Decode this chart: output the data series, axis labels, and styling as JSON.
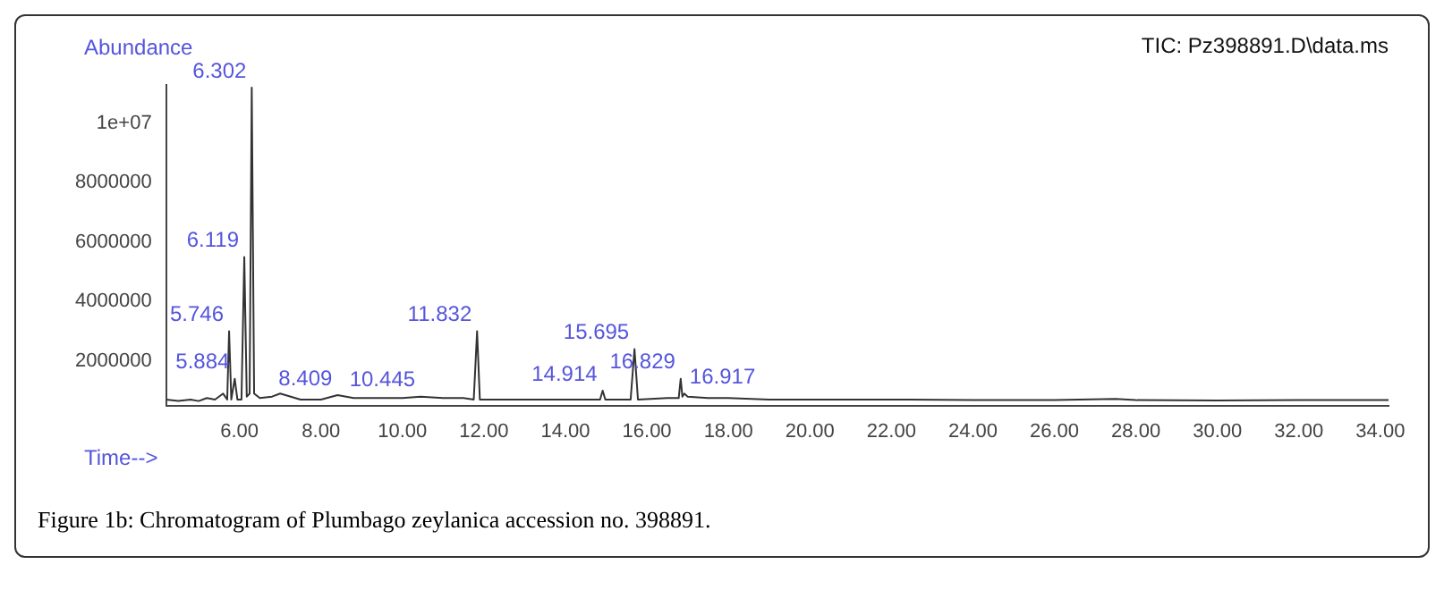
{
  "chart_data": {
    "type": "line",
    "title": "TIC: Pz398891.D\\data.ms",
    "xlabel": "Time-->",
    "ylabel": "Abundance",
    "x": [
      4.2,
      4.5,
      4.8,
      5.0,
      5.2,
      5.4,
      5.6,
      5.7,
      5.746,
      5.8,
      5.884,
      5.95,
      6.05,
      6.119,
      6.18,
      6.25,
      6.302,
      6.36,
      6.5,
      6.8,
      7.0,
      7.5,
      8.0,
      8.409,
      8.8,
      9.5,
      10.0,
      10.445,
      11.0,
      11.5,
      11.75,
      11.832,
      11.9,
      12.5,
      13.5,
      14.5,
      14.85,
      14.914,
      14.98,
      15.6,
      15.695,
      15.78,
      16.5,
      16.78,
      16.829,
      16.87,
      16.917,
      17.0,
      17.5,
      18,
      19,
      20,
      22,
      24,
      26,
      27.5,
      28,
      30,
      32,
      34.2
    ],
    "series": [
      {
        "color": "#333333",
        "values": [
          700000,
          650000,
          700000,
          650000,
          750000,
          700000,
          900000,
          700000,
          3000000,
          700000,
          1400000,
          700000,
          700000,
          5500000,
          800000,
          900000,
          11200000,
          900000,
          750000,
          800000,
          900000,
          700000,
          700000,
          850000,
          750000,
          750000,
          750000,
          800000,
          750000,
          750000,
          700000,
          3000000,
          700000,
          700000,
          700000,
          700000,
          700000,
          1000000,
          700000,
          700000,
          2400000,
          700000,
          750000,
          750000,
          1400000,
          800000,
          900000,
          800000,
          750000,
          750000,
          700000,
          700000,
          700000,
          680000,
          680000,
          720000,
          680000,
          670000,
          680000,
          680000
        ]
      }
    ],
    "xlim": [
      4.2,
      34.2
    ],
    "ylim": [
      500000,
      11300000
    ],
    "xticks": [
      {
        "value": 6,
        "label": "6.00"
      },
      {
        "value": 8,
        "label": "8.00"
      },
      {
        "value": 10,
        "label": "10.00"
      },
      {
        "value": 12,
        "label": "12.00"
      },
      {
        "value": 14,
        "label": "14.00"
      },
      {
        "value": 16,
        "label": "16.00"
      },
      {
        "value": 18,
        "label": "18.00"
      },
      {
        "value": 20,
        "label": "20.00"
      },
      {
        "value": 22,
        "label": "22.00"
      },
      {
        "value": 24,
        "label": "24.00"
      },
      {
        "value": 26,
        "label": "26.00"
      },
      {
        "value": 28,
        "label": "28.00"
      },
      {
        "value": 30,
        "label": "30.00"
      },
      {
        "value": 32,
        "label": "32.00"
      },
      {
        "value": 34,
        "label": "34.00"
      }
    ],
    "yticks": [
      2000000,
      4000000,
      6000000,
      8000000,
      {
        "value": 10000000,
        "label": "1e+07"
      }
    ],
    "grid": false,
    "legend": false,
    "marker": "none",
    "line_style": "solid",
    "annotations": [
      {
        "text": "6.302",
        "x": 6.302,
        "y": 11200000
      },
      {
        "text": "6.119",
        "x": 6.119,
        "y": 5500000
      },
      {
        "text": "5.746",
        "x": 5.746,
        "y": 3000000
      },
      {
        "text": "5.884",
        "x": 5.884,
        "y": 1400000
      },
      {
        "text": "8.409",
        "x": 8.409,
        "y": 850000
      },
      {
        "text": "10.445",
        "x": 10.445,
        "y": 800000
      },
      {
        "text": "11.832",
        "x": 11.832,
        "y": 3000000
      },
      {
        "text": "14.914",
        "x": 14.914,
        "y": 1000000
      },
      {
        "text": "15.695",
        "x": 15.695,
        "y": 2400000
      },
      {
        "text": "16.829",
        "x": 16.829,
        "y": 1400000
      },
      {
        "text": "16.917",
        "x": 16.917,
        "y": 900000
      },
      "Figure 1b: Chromatogram of Plumbago zeylanica accession no. 398891."
    ]
  }
}
